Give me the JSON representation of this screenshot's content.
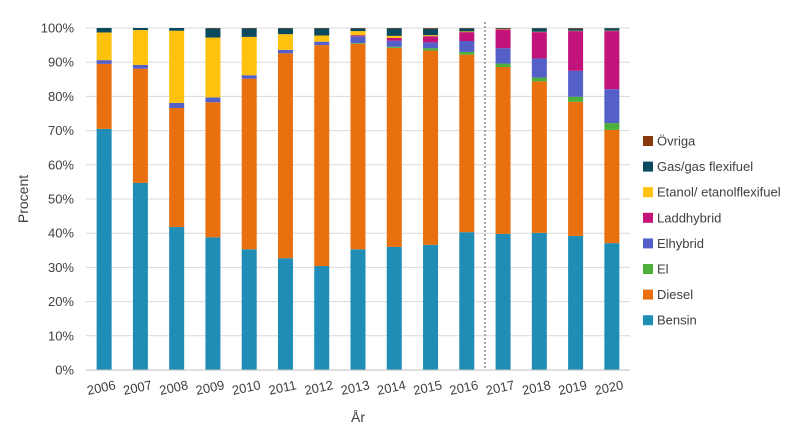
{
  "chart_data": {
    "type": "bar",
    "stacked": true,
    "title": "",
    "xlabel": "År",
    "ylabel": "Procent",
    "ylim": [
      0,
      100
    ],
    "yticks": [
      "0%",
      "10%",
      "20%",
      "30%",
      "40%",
      "50%",
      "60%",
      "70%",
      "80%",
      "90%",
      "100%"
    ],
    "categories": [
      "2006",
      "2007",
      "2008",
      "2009",
      "2010",
      "2011",
      "2012",
      "2013",
      "2014",
      "2015",
      "2016",
      "2017",
      "2018",
      "2019",
      "2020"
    ],
    "grid": true,
    "legend_position": "right",
    "series": [
      {
        "name": "Bensin",
        "color": "#1F8DB5",
        "values": [
          70.5,
          54.7,
          41.8,
          38.8,
          35.3,
          32.7,
          30.4,
          35.3,
          36.0,
          36.6,
          40.3,
          39.8,
          40.1,
          39.2,
          37.1
        ]
      },
      {
        "name": "Diesel",
        "color": "#E8700F",
        "values": [
          19.0,
          33.4,
          34.8,
          39.5,
          49.9,
          59.9,
          64.6,
          60.1,
          58.2,
          56.8,
          51.9,
          48.8,
          44.3,
          39.2,
          33.1
        ]
      },
      {
        "name": "El",
        "color": "#4CAF3A",
        "values": [
          0,
          0,
          0,
          0,
          0,
          0,
          0,
          0.2,
          0.3,
          0.7,
          0.8,
          1.0,
          1.1,
          1.5,
          2.0
        ]
      },
      {
        "name": "Elhybrid",
        "color": "#5460C8",
        "values": [
          1.1,
          1.1,
          1.5,
          1.4,
          1.0,
          1.0,
          1.0,
          2.0,
          1.8,
          1.7,
          3.2,
          4.5,
          5.6,
          7.6,
          9.9
        ]
      },
      {
        "name": "Laddhybrid",
        "color": "#C2137A",
        "values": [
          0,
          0,
          0,
          0,
          0,
          0,
          0,
          0.3,
          0.8,
          1.8,
          2.6,
          5.5,
          7.7,
          11.6,
          17.0
        ]
      },
      {
        "name": "Etanol/ etanolflexifuel",
        "color": "#FFC20E",
        "values": [
          8.1,
          10.2,
          21.1,
          17.5,
          11.2,
          4.6,
          1.8,
          1.2,
          0.6,
          0.3,
          0.2,
          0.1,
          0.1,
          0.1,
          0.1
        ]
      },
      {
        "name": "Gas/gas flexifuel",
        "color": "#0B4A5E",
        "values": [
          1.3,
          0.6,
          0.8,
          2.7,
          2.5,
          1.7,
          2.1,
          0.8,
          2.2,
          1.9,
          0.9,
          0.2,
          1.0,
          0.6,
          0.7
        ]
      },
      {
        "name": "Övriga",
        "color": "#8B3A0F",
        "values": [
          0,
          0,
          0,
          0.1,
          0.1,
          0.1,
          0.1,
          0.1,
          0.1,
          0.2,
          0.1,
          0.1,
          0.1,
          0.2,
          0.1
        ]
      }
    ],
    "divider_after_category": "2016"
  }
}
